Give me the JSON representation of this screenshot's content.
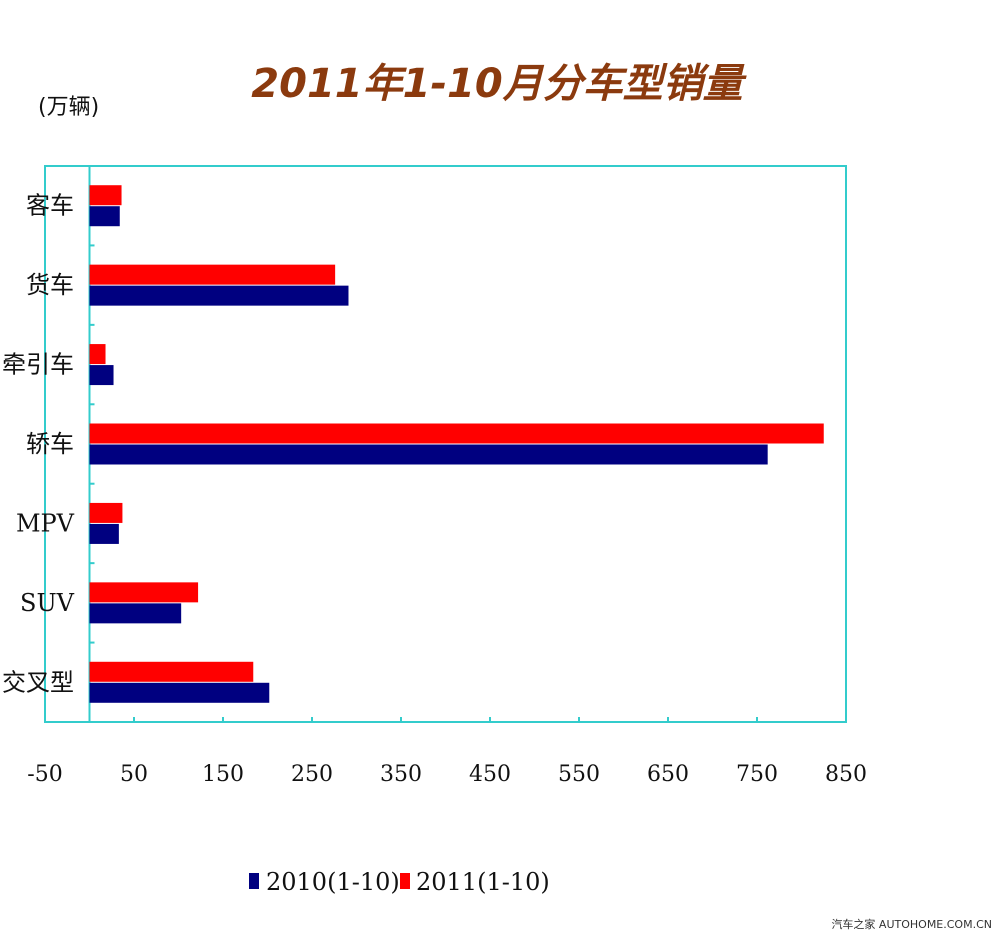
{
  "chart_data": {
    "type": "bar",
    "orientation": "horizontal",
    "title": "2011年1-10月分车型销量",
    "unit_label": "(万辆)",
    "categories": [
      "客车",
      "货车",
      "牵引车",
      "轿车",
      "MPV",
      "SUV",
      "交叉型"
    ],
    "series": [
      {
        "name": "2010(1-10)",
        "color": "#000080",
        "values": [
          34,
          291,
          27,
          762,
          33,
          103,
          202
        ]
      },
      {
        "name": "2011(1-10)",
        "color": "#FF0000",
        "values": [
          36,
          276,
          18,
          825,
          37,
          122,
          184
        ]
      }
    ],
    "xlim": [
      -50,
      850
    ],
    "xticks": [
      "-50",
      "50",
      "150",
      "250",
      "350",
      "450",
      "550",
      "650",
      "750",
      "850"
    ],
    "grid": false,
    "legend_position": "bottom"
  },
  "watermark": "汽车之家 AUTOHOME.COM.CN"
}
